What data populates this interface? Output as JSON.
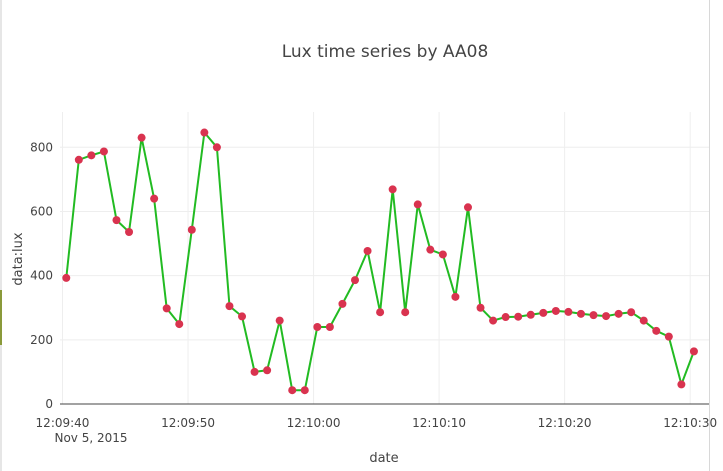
{
  "chart_data": {
    "type": "line",
    "title": "Lux time series by AA08",
    "xlabel": "date",
    "ylabel": "data:lux",
    "x_date_label": "Nov 5, 2015",
    "x_ticks": [
      "12:09:40",
      "12:09:50",
      "12:10:00",
      "12:10:10",
      "12:10:20",
      "12:10:30"
    ],
    "y_ticks": [
      0,
      200,
      400,
      600,
      800
    ],
    "xlim": [
      "12:09:39.8",
      "12:10:31.5"
    ],
    "ylim": [
      0,
      910
    ],
    "grid": true,
    "line_color": "#22bb22",
    "marker_color": "#d9334f",
    "series": [
      {
        "x": [
          "12:09:40.3",
          "12:09:41.3",
          "12:09:42.3",
          "12:09:43.3",
          "12:09:44.3",
          "12:09:45.3",
          "12:09:46.3",
          "12:09:47.3",
          "12:09:48.3",
          "12:09:49.3",
          "12:09:50.3",
          "12:09:51.3",
          "12:09:52.3",
          "12:09:53.3",
          "12:09:54.3",
          "12:09:55.3",
          "12:09:56.3",
          "12:09:57.3",
          "12:09:58.3",
          "12:09:59.3",
          "12:10:00.3",
          "12:10:01.3",
          "12:10:02.3",
          "12:10:03.3",
          "12:10:04.3",
          "12:10:05.3",
          "12:10:06.3",
          "12:10:07.3",
          "12:10:08.3",
          "12:10:09.3",
          "12:10:10.3",
          "12:10:11.3",
          "12:10:12.3",
          "12:10:13.3",
          "12:10:14.3",
          "12:10:15.3",
          "12:10:16.3",
          "12:10:17.3",
          "12:10:18.3",
          "12:10:19.3",
          "12:10:20.3",
          "12:10:21.3",
          "12:10:22.3",
          "12:10:23.3",
          "12:10:24.3",
          "12:10:25.3",
          "12:10:26.3",
          "12:10:27.3",
          "12:10:28.3",
          "12:10:29.3",
          "12:10:30.3"
        ],
        "y": [
          393,
          761,
          775,
          787,
          573,
          536,
          830,
          640,
          298,
          249,
          543,
          846,
          800,
          305,
          273,
          100,
          105,
          260,
          43,
          43,
          240,
          240,
          312,
          386,
          477,
          286,
          669,
          286,
          622,
          481,
          466,
          334,
          613,
          300,
          260,
          271,
          272,
          278,
          284,
          290,
          287,
          281,
          277,
          274,
          281,
          286,
          260,
          228,
          210,
          61,
          164
        ]
      }
    ]
  }
}
